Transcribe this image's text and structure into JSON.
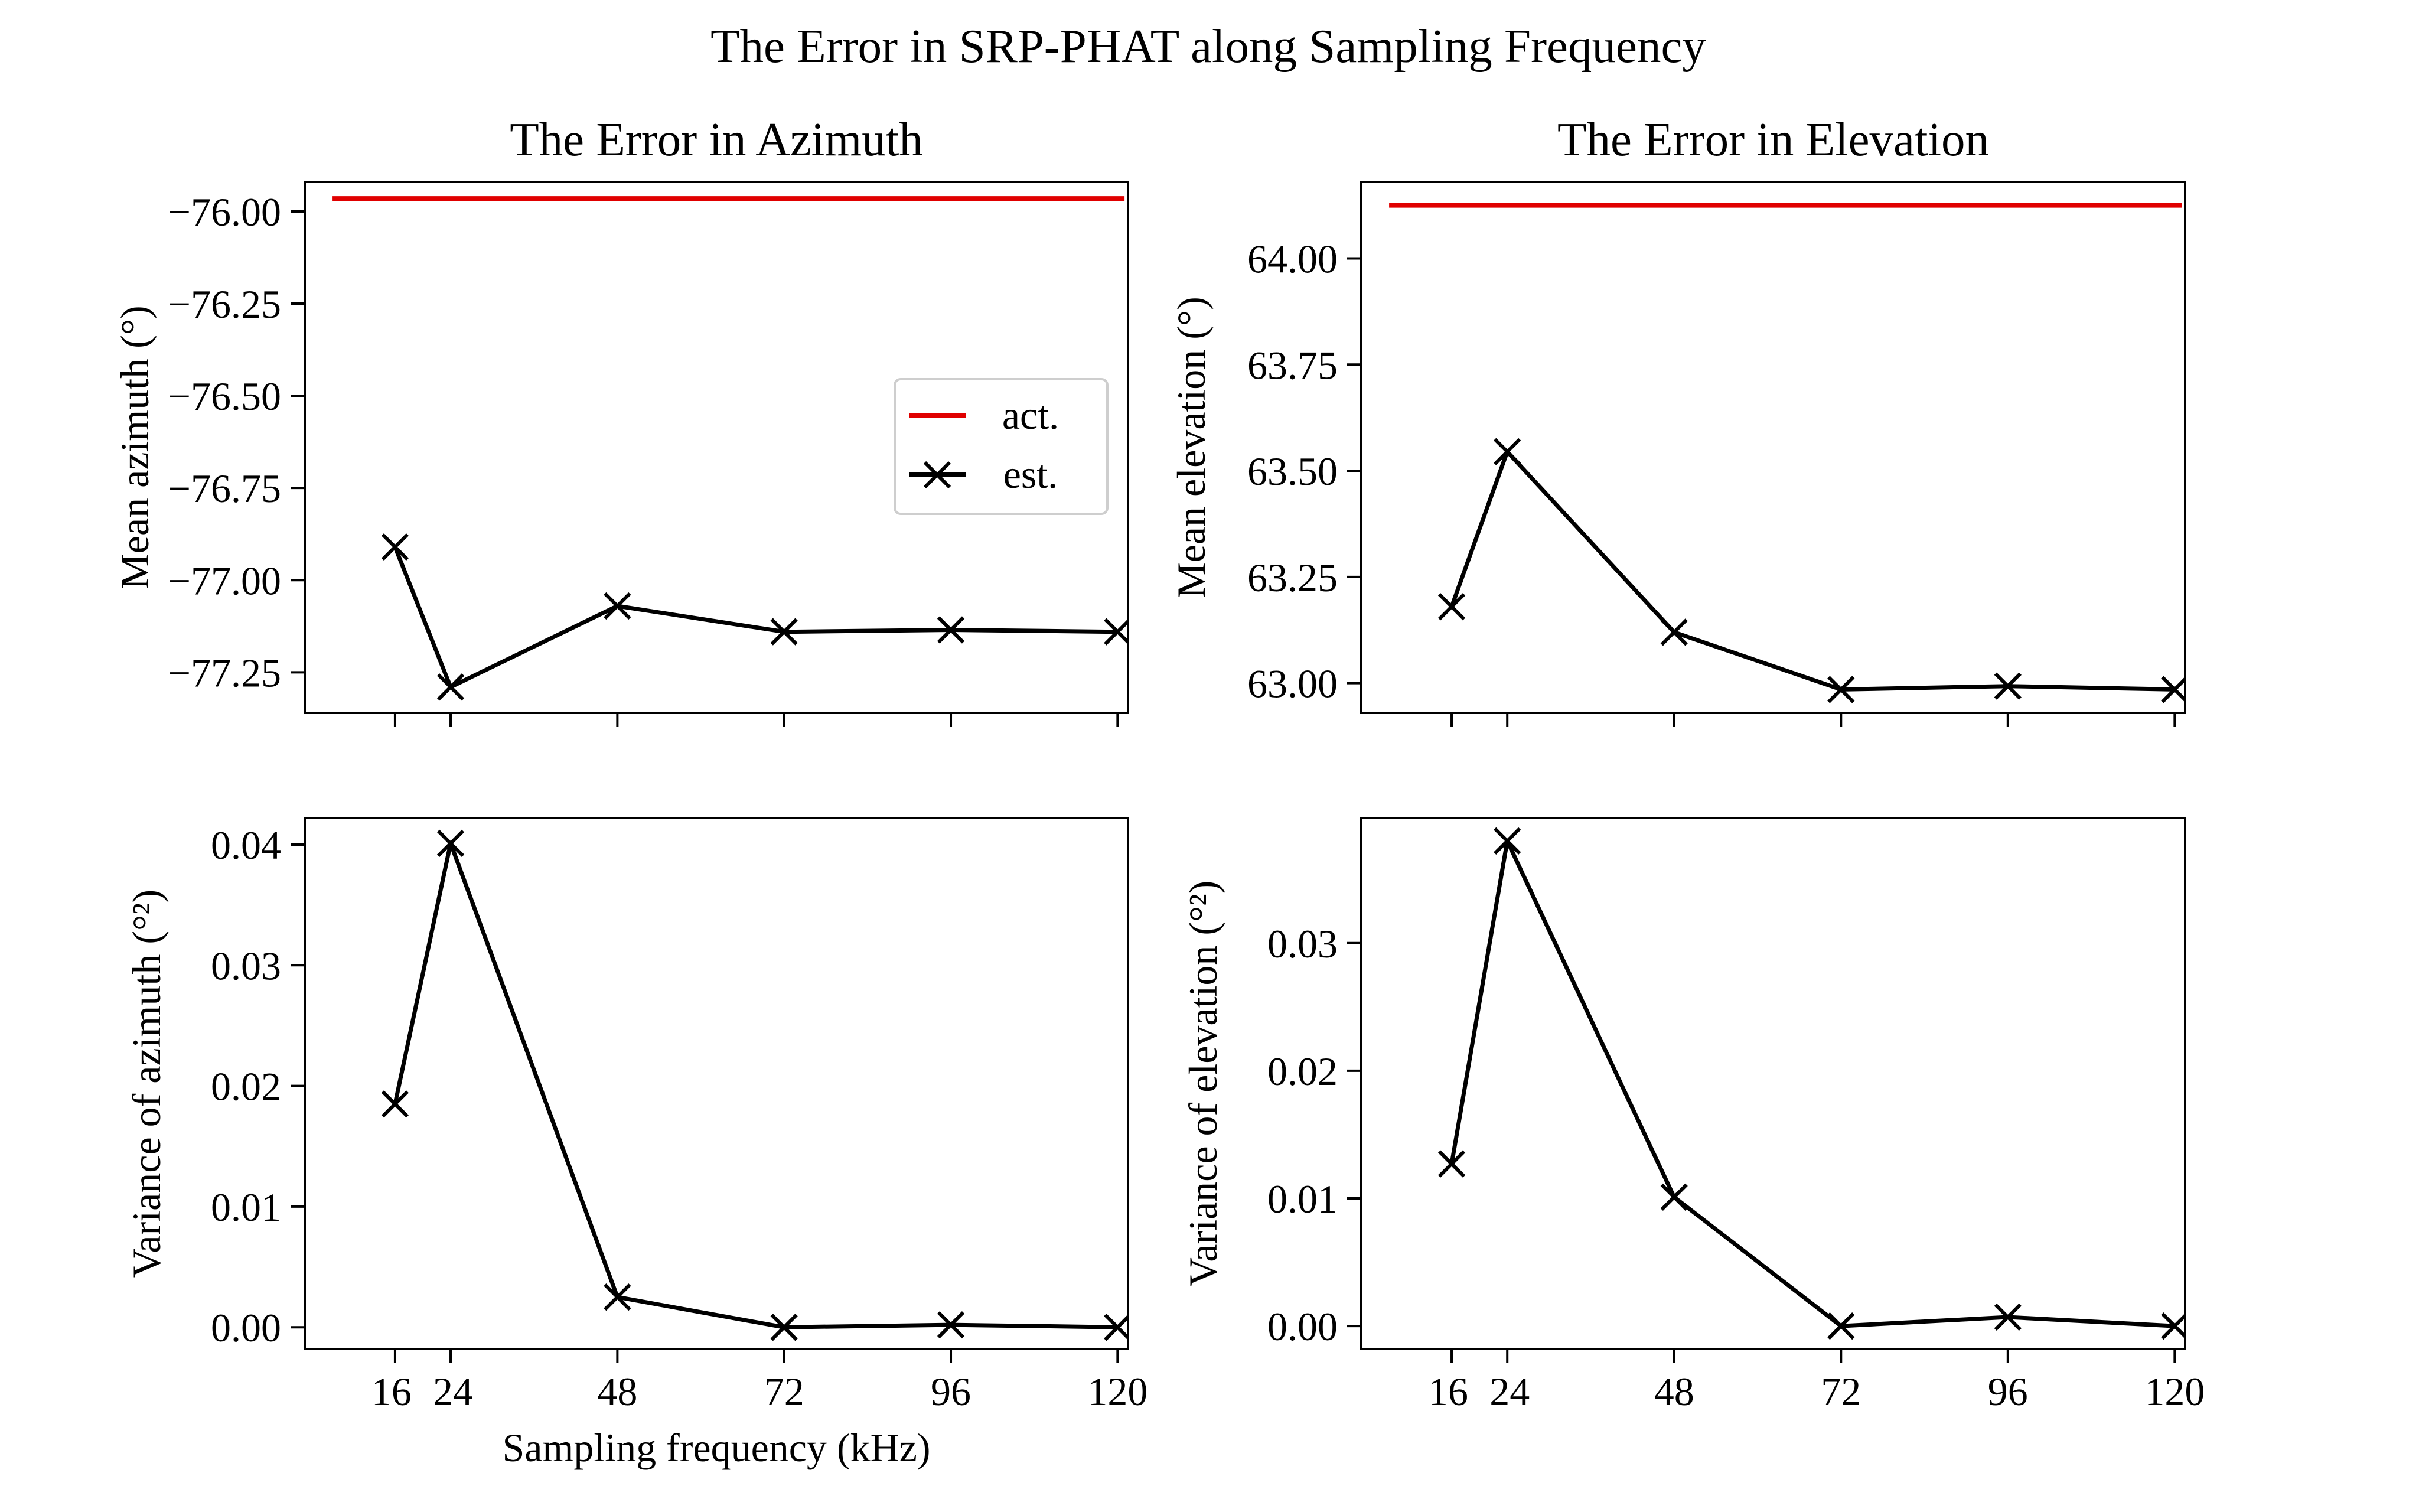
{
  "figure": {
    "suptitle": "The Error in SRP-PHAT along Sampling Frequency"
  },
  "chart_data": [
    {
      "type": "line",
      "panel": "top-left",
      "title": "The Error in Azimuth",
      "xlabel": "",
      "ylabel": "Mean azimuth (°)",
      "xlim": [
        3,
        121.5
      ],
      "ylim": [
        -77.36,
        -75.92
      ],
      "xticks": [
        16,
        24,
        48,
        72,
        96,
        120
      ],
      "xtick_labels_visible": false,
      "yticks": [
        -76.0,
        -76.25,
        -76.5,
        -76.75,
        -77.0,
        -77.25
      ],
      "ytick_labels": [
        "−76.00",
        "−76.25",
        "−76.50",
        "−76.75",
        "−77.00",
        "−77.25"
      ],
      "grid": false,
      "legend": {
        "position": "center-right",
        "entries": [
          "act.",
          "est."
        ]
      },
      "series": [
        {
          "name": "act.",
          "color": "#e00000",
          "marker": "none",
          "x": [
            7,
            121
          ],
          "y": [
            -75.965,
            -75.965
          ]
        },
        {
          "name": "est.",
          "color": "#000000",
          "marker": "x",
          "x": [
            16,
            24,
            48,
            72,
            96,
            120
          ],
          "y": [
            -76.91,
            -77.29,
            -77.07,
            -77.14,
            -77.135,
            -77.14
          ]
        }
      ]
    },
    {
      "type": "line",
      "panel": "top-right",
      "title": "The Error in Elevation",
      "xlabel": "",
      "ylabel": "Mean elevation (°)",
      "xlim": [
        3,
        121.5
      ],
      "ylim": [
        62.93,
        64.18
      ],
      "xticks": [
        16,
        24,
        48,
        72,
        96,
        120
      ],
      "xtick_labels_visible": false,
      "yticks": [
        63.0,
        63.25,
        63.5,
        63.75,
        64.0
      ],
      "ytick_labels": [
        "63.00",
        "63.25",
        "63.50",
        "63.75",
        "64.00"
      ],
      "grid": false,
      "legend": null,
      "series": [
        {
          "name": "act.",
          "color": "#e00000",
          "marker": "none",
          "x": [
            7,
            121
          ],
          "y": [
            64.125,
            64.125
          ]
        },
        {
          "name": "est.",
          "color": "#000000",
          "marker": "x",
          "x": [
            16,
            24,
            48,
            72,
            96,
            120
          ],
          "y": [
            63.18,
            63.545,
            63.12,
            62.985,
            62.993,
            62.985
          ]
        }
      ]
    },
    {
      "type": "line",
      "panel": "bottom-left",
      "title": "",
      "xlabel": "Sampling frequency (kHz)",
      "ylabel": "Variance of azimuth (°²)",
      "xlim": [
        3,
        121.5
      ],
      "ylim": [
        -0.0018,
        0.0422
      ],
      "xticks": [
        16,
        24,
        48,
        72,
        96,
        120
      ],
      "xtick_labels": [
        "16",
        "24",
        "48",
        "72",
        "96",
        "120"
      ],
      "yticks": [
        0.0,
        0.01,
        0.02,
        0.03,
        0.04
      ],
      "ytick_labels": [
        "0.00",
        "0.01",
        "0.02",
        "0.03",
        "0.04"
      ],
      "grid": false,
      "legend": null,
      "series": [
        {
          "name": "est.",
          "color": "#000000",
          "marker": "x",
          "x": [
            16,
            24,
            48,
            72,
            96,
            120
          ],
          "y": [
            0.0185,
            0.0401,
            0.0025,
            0.0,
            0.0002,
            0.0
          ]
        }
      ]
    },
    {
      "type": "line",
      "panel": "bottom-right",
      "title": "",
      "xlabel": "",
      "ylabel": "Variance of elevation (°²)",
      "xlim": [
        3,
        121.5
      ],
      "ylim": [
        -0.0018,
        0.0398
      ],
      "xticks": [
        16,
        24,
        48,
        72,
        96,
        120
      ],
      "xtick_labels": [
        "16",
        "24",
        "48",
        "72",
        "96",
        "120"
      ],
      "yticks": [
        0.0,
        0.01,
        0.02,
        0.03
      ],
      "ytick_labels": [
        "0.00",
        "0.01",
        "0.02",
        "0.03"
      ],
      "grid": false,
      "legend": null,
      "series": [
        {
          "name": "est.",
          "color": "#000000",
          "marker": "x",
          "x": [
            16,
            24,
            48,
            72,
            96,
            120
          ],
          "y": [
            0.0127,
            0.038,
            0.0101,
            0.0,
            0.0007,
            0.0
          ]
        }
      ]
    }
  ]
}
